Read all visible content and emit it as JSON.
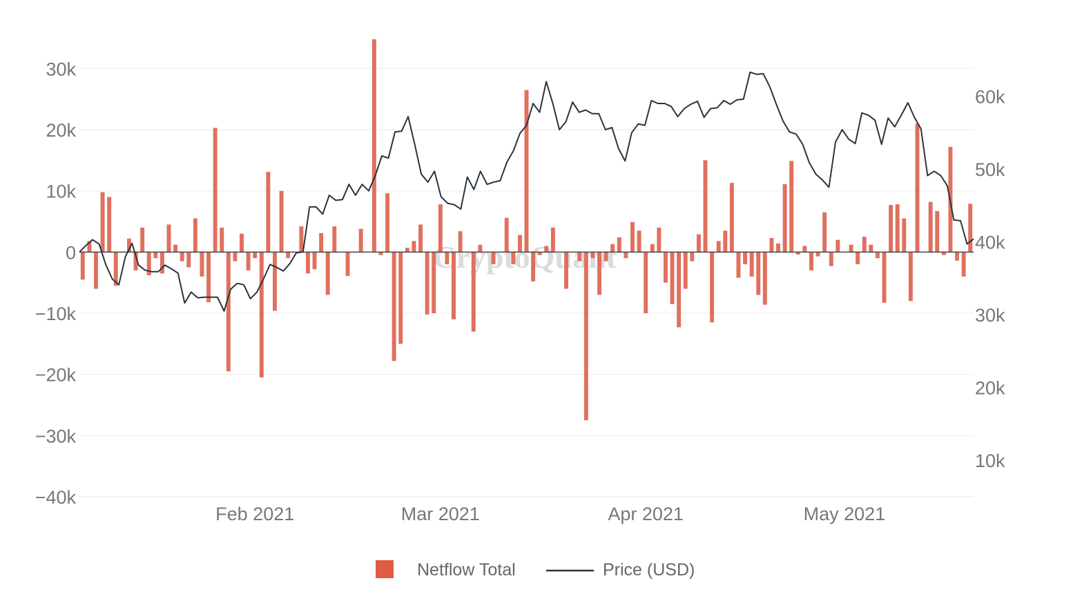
{
  "watermark": "CryptoQuant",
  "legend": {
    "netflow_label": "Netflow Total",
    "price_label": "Price (USD)"
  },
  "colors": {
    "netflow": "#e0705e",
    "price": "#2b333b",
    "grid": "#eeeeee",
    "zero": "#444444"
  },
  "chart_data": {
    "type": "bar",
    "x_start": "2021-01-06",
    "x_ticks": [
      {
        "label": "Feb 2021",
        "date": "2021-02-01"
      },
      {
        "label": "Mar 2021",
        "date": "2021-03-01"
      },
      {
        "label": "Apr 2021",
        "date": "2021-04-01"
      },
      {
        "label": "May 2021",
        "date": "2021-05-01"
      }
    ],
    "y_left": {
      "range": [
        -40000,
        35000
      ],
      "ticks": [
        {
          "value": 30000,
          "label": "30k"
        },
        {
          "value": 20000,
          "label": "20k"
        },
        {
          "value": 10000,
          "label": "10k"
        },
        {
          "value": 0,
          "label": "0"
        },
        {
          "value": -10000,
          "label": "−10k"
        },
        {
          "value": -20000,
          "label": "−20k"
        },
        {
          "value": -30000,
          "label": "−30k"
        },
        {
          "value": -40000,
          "label": "−40k"
        }
      ]
    },
    "y_right": {
      "range": [
        5000,
        68000
      ],
      "ticks": [
        {
          "value": 60000,
          "label": "60k"
        },
        {
          "value": 50000,
          "label": "50k"
        },
        {
          "value": 40000,
          "label": "40k"
        },
        {
          "value": 30000,
          "label": "30k"
        },
        {
          "value": 20000,
          "label": "20k"
        },
        {
          "value": 10000,
          "label": "10k"
        }
      ]
    },
    "series": [
      {
        "name": "Netflow Total",
        "type": "bar",
        "axis": "left",
        "values": [
          -4500,
          1800,
          -6000,
          9800,
          9000,
          -5500,
          0,
          2200,
          -3000,
          4000,
          -3800,
          -1000,
          -3500,
          4500,
          1200,
          -1500,
          -2500,
          5500,
          -4000,
          -8200,
          20300,
          4000,
          -19500,
          -1500,
          3000,
          -3000,
          -1000,
          -20500,
          13100,
          -9600,
          10000,
          -1000,
          0,
          4200,
          -3500,
          -2800,
          3100,
          -7000,
          4200,
          0,
          -3900,
          0,
          3800,
          0,
          34800,
          -500,
          9600,
          -17800,
          -15000,
          700,
          1800,
          4500,
          -10200,
          -10000,
          7800,
          -2000,
          -11000,
          3400,
          0,
          -13000,
          1200,
          -100,
          -2000,
          0,
          5600,
          -2000,
          2800,
          26500,
          -4800,
          -500,
          1000,
          4000,
          0,
          -6000,
          0,
          -1500,
          -27500,
          -1000,
          -7000,
          -1500,
          1300,
          2400,
          -1000,
          4900,
          3500,
          -10000,
          1300,
          4000,
          -5000,
          -8500,
          -12300,
          -6000,
          -1500,
          2900,
          15000,
          -11500,
          1800,
          3500,
          11300,
          -4200,
          -2000,
          -4000,
          -7000,
          -8600,
          2300,
          1400,
          11100,
          14900,
          -400,
          1000,
          -3000,
          -700,
          6500,
          -2300,
          2000,
          0,
          1200,
          -2000,
          2500,
          1200,
          -1000,
          -8300,
          7700,
          7800,
          5500,
          -8000,
          21000,
          0,
          8200,
          6700,
          -500,
          17200,
          -1400,
          -4000,
          7900
        ]
      },
      {
        "name": "Price (USD)",
        "type": "line",
        "axis": "right",
        "values": [
          38600,
          39500,
          40300,
          39700,
          36900,
          34900,
          34100,
          38000,
          39800,
          36800,
          36100,
          35900,
          35900,
          36800,
          36300,
          35700,
          31600,
          33100,
          32300,
          32400,
          32400,
          32400,
          30500,
          33500,
          34300,
          34100,
          32200,
          33100,
          34900,
          36900,
          36500,
          36000,
          37000,
          38500,
          38600,
          44800,
          44800,
          43800,
          46400,
          45700,
          45800,
          47900,
          46400,
          47900,
          47000,
          49100,
          51800,
          51500,
          55100,
          55200,
          57200,
          53400,
          49300,
          48200,
          49700,
          46200,
          45300,
          45100,
          44500,
          48900,
          47200,
          49700,
          47900,
          48200,
          48400,
          50900,
          52500,
          54900,
          56000,
          59000,
          57800,
          62000,
          59000,
          55400,
          56500,
          59200,
          57800,
          58100,
          57600,
          57600,
          55400,
          55700,
          52800,
          51100,
          55000,
          56200,
          56000,
          59400,
          59000,
          59000,
          58600,
          57200,
          58300,
          58900,
          59300,
          57100,
          58300,
          58400,
          59400,
          58900,
          59500,
          59600,
          63300,
          63000,
          63100,
          61300,
          58900,
          56600,
          55100,
          54800,
          53400,
          50900,
          49300,
          48500,
          47500,
          53700,
          55400,
          54100,
          53500,
          57700,
          57400,
          56700,
          53400,
          57000,
          55800,
          57400,
          59100,
          57100,
          55500,
          49100,
          49700,
          49100,
          47700,
          43000,
          42900,
          39700,
          40400
        ]
      }
    ]
  }
}
